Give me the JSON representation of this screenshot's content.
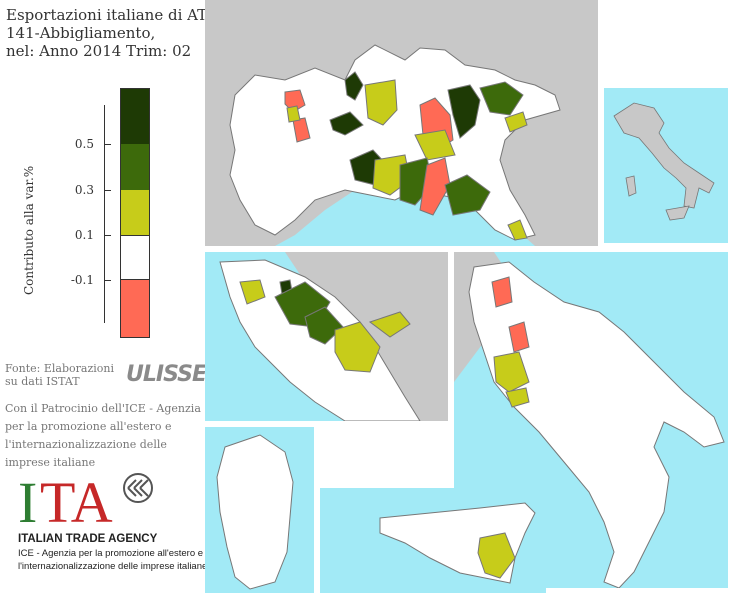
{
  "title": {
    "line1": "Esportazioni italiane di ATECO:",
    "line2": "141-Abbigliamento,",
    "line3": "nel: Anno 2014 Trim: 02"
  },
  "legend": {
    "axis_label": "Contributo alla var.%",
    "ticks": [
      "0.5",
      "0.3",
      "0.1",
      "-0.1"
    ],
    "classes": [
      {
        "color": "#1e3a05"
      },
      {
        "color": "#3d6a0b"
      },
      {
        "color": "#c7cc1a"
      },
      {
        "color": "#ffffff"
      },
      {
        "color": "#ff6a55"
      }
    ]
  },
  "colors": {
    "sea": "#a2eaf6",
    "land": "#ffffff",
    "other_land": "#c8c8c8",
    "border": "#777777"
  },
  "source": {
    "line1": "Fonte: Elaborazioni",
    "line2": "su dati ISTAT",
    "brand": "ULISSE"
  },
  "patronage": "Con il Patrocinio dell'ICE - Agenzia per la promozione all'estero e l'internazionalizzazione delle imprese italiane",
  "logo": {
    "letters": "ITA",
    "name": "ITALIAN TRADE AGENCY",
    "tagline1": "ICE - Agenzia per la promozione all'estero e",
    "tagline2": "l'internazionalizzazione delle imprese italiane"
  }
}
